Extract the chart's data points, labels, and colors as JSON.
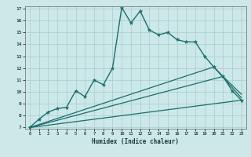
{
  "xlabel": "Humidex (Indice chaleur)",
  "ylabel": "",
  "bg_color": "#cce8e8",
  "grid_color": "#aacccc",
  "line_color": "#1a6e6e",
  "xlim": [
    0,
    23
  ],
  "ylim": [
    7,
    17
  ],
  "xticks": [
    0,
    1,
    2,
    3,
    4,
    5,
    6,
    7,
    8,
    9,
    10,
    11,
    12,
    13,
    14,
    15,
    16,
    17,
    18,
    19,
    20,
    21,
    22,
    23
  ],
  "yticks": [
    7,
    8,
    9,
    10,
    11,
    12,
    13,
    14,
    15,
    16,
    17
  ],
  "curves": [
    {
      "x": [
        0,
        1,
        2,
        3,
        4,
        5,
        6,
        7,
        8,
        9,
        10,
        11,
        12,
        13,
        14,
        15,
        16,
        17,
        18,
        19,
        20,
        21,
        22,
        23
      ],
      "y": [
        7.0,
        7.7,
        8.3,
        8.6,
        8.7,
        10.1,
        9.6,
        11.0,
        10.6,
        12.0,
        17.1,
        15.8,
        16.8,
        15.2,
        14.8,
        15.0,
        14.4,
        14.2,
        14.2,
        13.0,
        12.1,
        11.3,
        10.1,
        9.3
      ],
      "marker": true,
      "linewidth": 1.0
    },
    {
      "x": [
        0,
        23
      ],
      "y": [
        7.0,
        9.3
      ],
      "marker": false,
      "linewidth": 0.9
    },
    {
      "x": [
        0,
        21,
        23
      ],
      "y": [
        7.0,
        11.3,
        9.8
      ],
      "marker": false,
      "linewidth": 0.9
    },
    {
      "x": [
        0,
        20,
        23
      ],
      "y": [
        7.0,
        12.1,
        9.5
      ],
      "marker": false,
      "linewidth": 0.9
    }
  ]
}
